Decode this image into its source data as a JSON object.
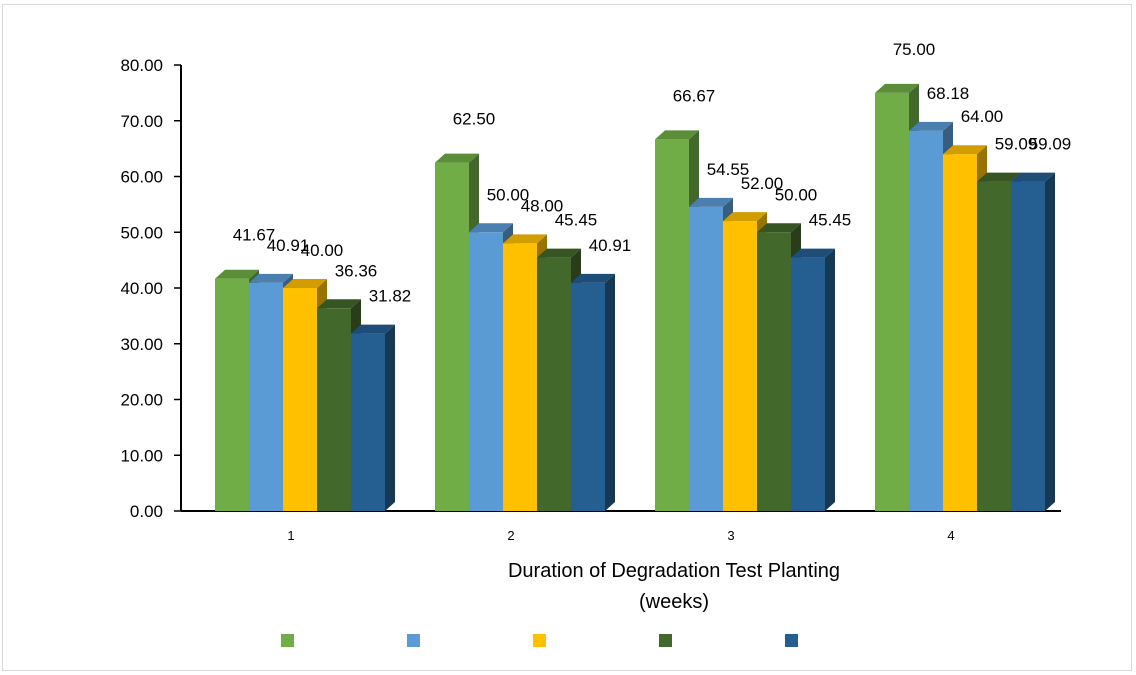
{
  "chart_data": {
    "type": "bar",
    "categories": [
      "1",
      "2",
      "3",
      "4"
    ],
    "series": [
      {
        "color": "#70ad47",
        "values": [
          41.67,
          62.5,
          66.67,
          75.0
        ]
      },
      {
        "color": "#5b9bd5",
        "values": [
          40.91,
          50.0,
          54.55,
          68.18
        ]
      },
      {
        "color": "#ffc000",
        "values": [
          40.0,
          48.0,
          52.0,
          64.0
        ]
      },
      {
        "color": "#43682b",
        "values": [
          36.36,
          45.45,
          50.0,
          59.09
        ]
      },
      {
        "color": "#255e91",
        "values": [
          31.82,
          40.91,
          45.45,
          59.09
        ]
      }
    ],
    "xlabel_line1": "Duration of Degradation Test Planting",
    "xlabel_line2": "(weeks)",
    "ylim": [
      0,
      80
    ],
    "yticks": [
      "0.00",
      "10.00",
      "20.00",
      "30.00",
      "40.00",
      "50.00",
      "60.00",
      "70.00",
      "80.00"
    ],
    "grid": false,
    "legend_position": "bottom",
    "bar_style": "3d",
    "label_decimals": 2
  }
}
